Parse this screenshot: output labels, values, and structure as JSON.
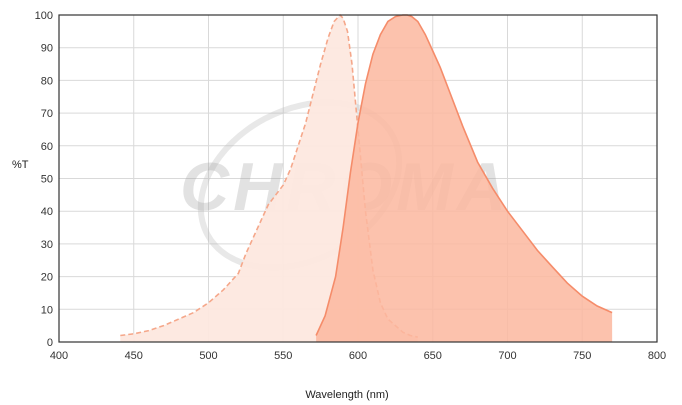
{
  "chart_data": {
    "type": "area",
    "xlabel": "Wavelength (nm)",
    "ylabel": "%T",
    "xlim": [
      400,
      800
    ],
    "ylim": [
      0,
      100
    ],
    "x_ticks": [
      400,
      450,
      500,
      550,
      600,
      650,
      700,
      750,
      800
    ],
    "y_ticks": [
      0,
      10,
      20,
      30,
      40,
      50,
      60,
      70,
      80,
      90,
      100
    ],
    "grid": true,
    "watermark": "CHROMA",
    "series": [
      {
        "style": "dashed",
        "fill": "#fde8df",
        "stroke": "#f5a78a",
        "x": [
          441,
          450,
          460,
          470,
          480,
          490,
          500,
          510,
          520,
          525,
          530,
          535,
          540,
          545,
          550,
          555,
          560,
          565,
          570,
          575,
          580,
          584,
          588,
          590,
          593,
          596,
          600,
          605,
          610,
          615,
          620,
          625,
          630,
          635,
          640
        ],
        "y": [
          2,
          2.5,
          3.5,
          5,
          7,
          9,
          12,
          16,
          21,
          27,
          32,
          37,
          42,
          45,
          48,
          53,
          60,
          67,
          76,
          85,
          93,
          98,
          100,
          99,
          95,
          85,
          65,
          40,
          22,
          12,
          7,
          5,
          3,
          2,
          1.5
        ]
      },
      {
        "style": "solid",
        "fill": "#fcb79f",
        "stroke": "#f58c6a",
        "x": [
          572,
          578,
          585,
          590,
          595,
          600,
          605,
          610,
          615,
          620,
          625,
          630,
          633,
          636,
          640,
          645,
          650,
          655,
          660,
          670,
          680,
          690,
          700,
          710,
          720,
          730,
          740,
          750,
          760,
          770
        ],
        "y": [
          2,
          8,
          20,
          35,
          52,
          67,
          79,
          88,
          94,
          98,
          99.5,
          100,
          100,
          99.5,
          98,
          94,
          89,
          84,
          78,
          66,
          55,
          47,
          40,
          34,
          28,
          23,
          18,
          14,
          11,
          9
        ]
      }
    ]
  }
}
